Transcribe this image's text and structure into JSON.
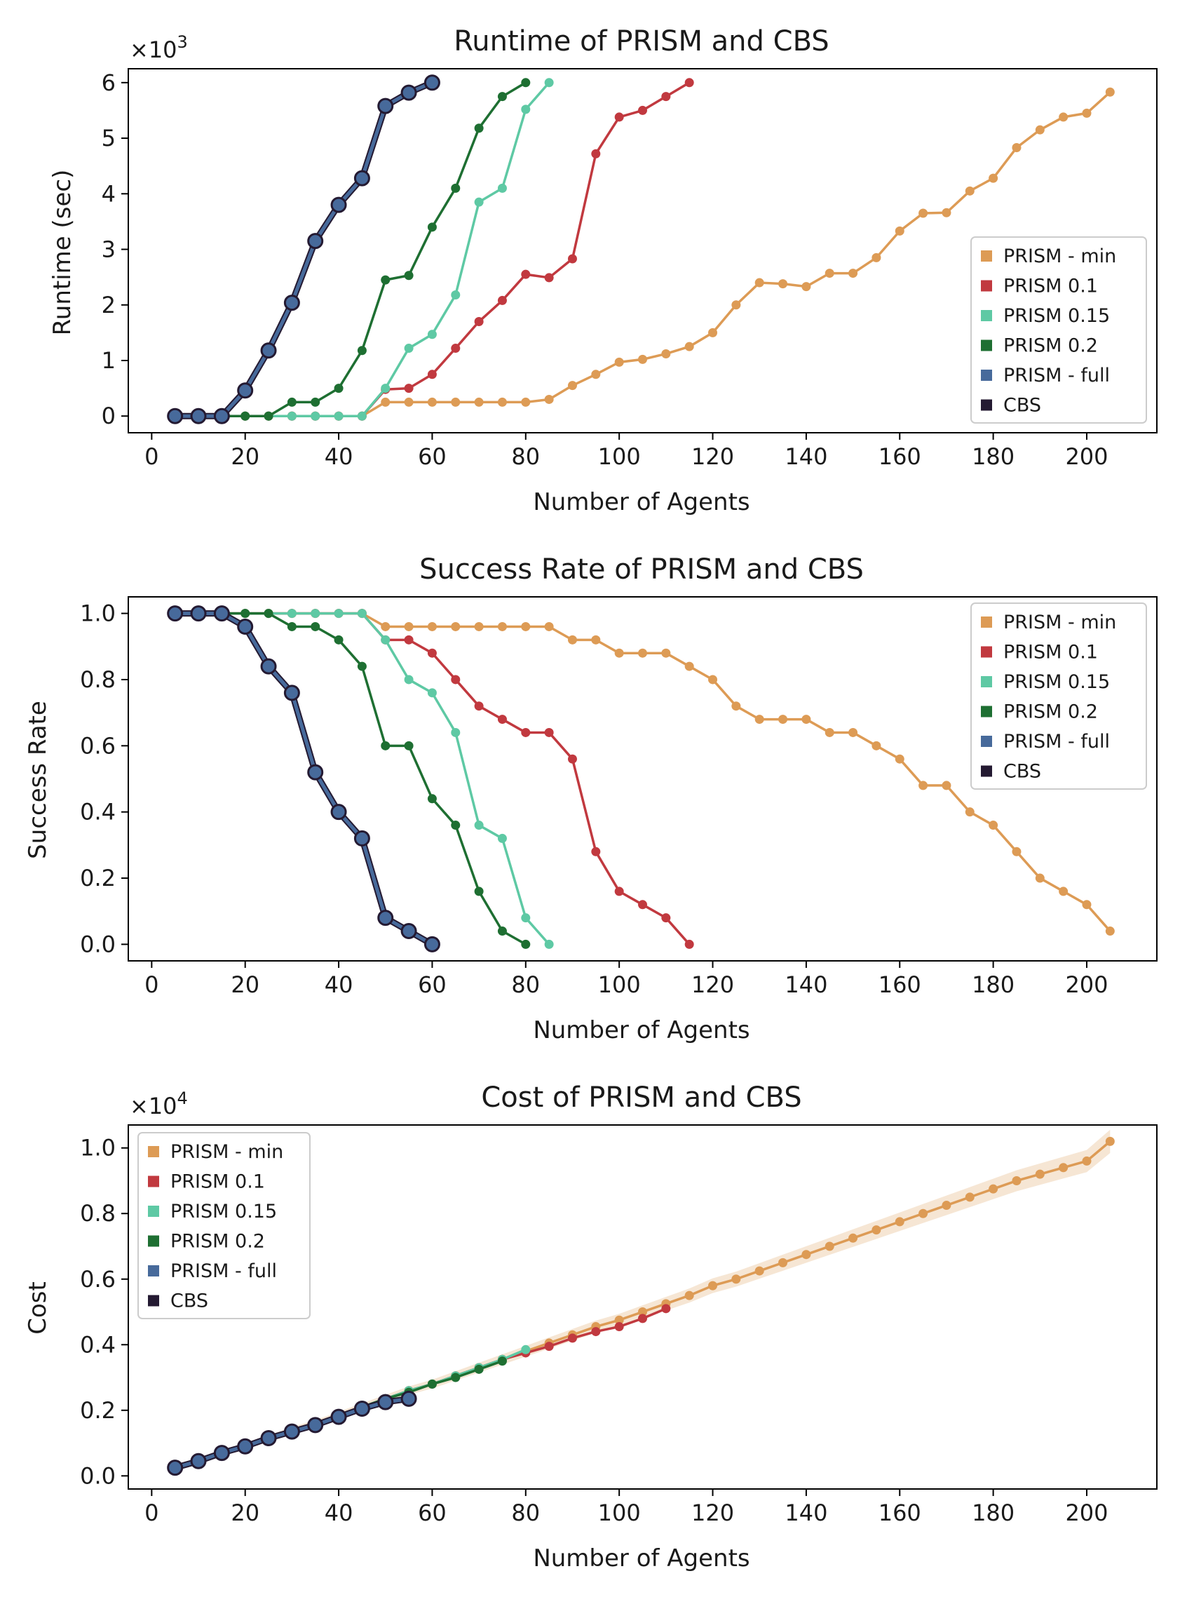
{
  "chart_data": [
    {
      "type": "line",
      "title": "Runtime of PRISM and CBS",
      "xlabel": "Number of Agents",
      "ylabel": "Runtime (sec)",
      "y_multiplier": "×10",
      "y_multiplier_exp": "3",
      "xlim": [
        -5,
        215
      ],
      "ylim": [
        -0.3,
        6.25
      ],
      "xticks": [
        0,
        20,
        40,
        60,
        80,
        100,
        120,
        140,
        160,
        180,
        200
      ],
      "yticks": [
        0,
        1,
        2,
        3,
        4,
        5,
        6
      ],
      "ytick_labels": [
        "0",
        "1",
        "2",
        "3",
        "4",
        "5",
        "6"
      ],
      "legend_position": "lower-right",
      "series": [
        {
          "name": "PRISM - min",
          "color": "#dd9b55",
          "x": [
            5,
            10,
            15,
            20,
            25,
            30,
            35,
            40,
            45,
            50,
            55,
            60,
            65,
            70,
            75,
            80,
            85,
            90,
            95,
            100,
            105,
            110,
            115,
            120,
            125,
            130,
            135,
            140,
            145,
            150,
            155,
            160,
            165,
            170,
            175,
            180,
            185,
            190,
            195,
            200,
            205
          ],
          "y": [
            0,
            0,
            0,
            0,
            0,
            0,
            0,
            0,
            0,
            0.25,
            0.25,
            0.25,
            0.25,
            0.25,
            0.25,
            0.25,
            0.3,
            0.55,
            0.75,
            0.97,
            1.02,
            1.12,
            1.25,
            1.5,
            2.0,
            2.4,
            2.38,
            2.33,
            2.57,
            2.57,
            2.85,
            3.33,
            3.65,
            3.66,
            4.05,
            4.28,
            4.83,
            5.15,
            5.38,
            5.45,
            5.83
          ]
        },
        {
          "name": "PRISM 0.1",
          "color": "#c1393f",
          "x": [
            5,
            10,
            15,
            20,
            25,
            30,
            35,
            40,
            45,
            50,
            55,
            60,
            65,
            70,
            75,
            80,
            85,
            90,
            95,
            100,
            105,
            110,
            115
          ],
          "y": [
            0,
            0,
            0,
            0,
            0,
            0,
            0,
            0,
            0,
            0.48,
            0.5,
            0.75,
            1.22,
            1.7,
            2.08,
            2.55,
            2.49,
            2.83,
            4.72,
            5.38,
            5.5,
            5.75,
            6.0
          ]
        },
        {
          "name": "PRISM 0.15",
          "color": "#5ec9a4",
          "x": [
            5,
            10,
            15,
            20,
            25,
            30,
            35,
            40,
            45,
            50,
            55,
            60,
            65,
            70,
            75,
            80,
            85
          ],
          "y": [
            0,
            0,
            0,
            0,
            0,
            0,
            0,
            0,
            0,
            0.5,
            1.22,
            1.47,
            2.18,
            3.85,
            4.1,
            5.52,
            6.0
          ]
        },
        {
          "name": "PRISM 0.2",
          "color": "#1e6f32",
          "x": [
            5,
            10,
            15,
            20,
            25,
            30,
            35,
            40,
            45,
            50,
            55,
            60,
            65,
            70,
            75,
            80
          ],
          "y": [
            0,
            0,
            0,
            0,
            0,
            0.25,
            0.25,
            0.5,
            1.18,
            2.45,
            2.53,
            3.4,
            4.1,
            5.18,
            5.75,
            6.0
          ]
        },
        {
          "name": "PRISM - full",
          "color": "#476a9b",
          "x": [
            5,
            10,
            15,
            20,
            25,
            30,
            35,
            40,
            45,
            50,
            55,
            60
          ],
          "y": [
            0,
            0,
            0,
            0.46,
            1.18,
            2.04,
            3.15,
            3.8,
            4.28,
            5.58,
            5.82,
            6.0
          ]
        },
        {
          "name": "CBS",
          "color": "#241a32",
          "x": [
            5,
            10,
            15,
            20,
            25,
            30,
            35,
            40,
            45,
            50,
            55,
            60
          ],
          "y": [
            0,
            0,
            0,
            0.46,
            1.18,
            2.04,
            3.15,
            3.8,
            4.28,
            5.58,
            5.82,
            6.0
          ]
        }
      ]
    },
    {
      "type": "line",
      "title": "Success Rate of PRISM and CBS",
      "xlabel": "Number of Agents",
      "ylabel": "Success Rate",
      "y_multiplier": "",
      "y_multiplier_exp": "",
      "xlim": [
        -5,
        215
      ],
      "ylim": [
        -0.05,
        1.05
      ],
      "xticks": [
        0,
        20,
        40,
        60,
        80,
        100,
        120,
        140,
        160,
        180,
        200
      ],
      "yticks": [
        0,
        0.2,
        0.4,
        0.6,
        0.8,
        1.0
      ],
      "ytick_labels": [
        "0.0",
        "0.2",
        "0.4",
        "0.6",
        "0.8",
        "1.0"
      ],
      "legend_position": "upper-right",
      "series": [
        {
          "name": "PRISM - min",
          "color": "#dd9b55",
          "x": [
            5,
            10,
            15,
            20,
            25,
            30,
            35,
            40,
            45,
            50,
            55,
            60,
            65,
            70,
            75,
            80,
            85,
            90,
            95,
            100,
            105,
            110,
            115,
            120,
            125,
            130,
            135,
            140,
            145,
            150,
            155,
            160,
            165,
            170,
            175,
            180,
            185,
            190,
            195,
            200,
            205
          ],
          "y": [
            1,
            1,
            1,
            1,
            1,
            1,
            1,
            1,
            1,
            0.96,
            0.96,
            0.96,
            0.96,
            0.96,
            0.96,
            0.96,
            0.96,
            0.92,
            0.92,
            0.88,
            0.88,
            0.88,
            0.84,
            0.8,
            0.72,
            0.68,
            0.68,
            0.68,
            0.64,
            0.64,
            0.6,
            0.56,
            0.48,
            0.48,
            0.4,
            0.36,
            0.28,
            0.2,
            0.16,
            0.12,
            0.04
          ]
        },
        {
          "name": "PRISM 0.1",
          "color": "#c1393f",
          "x": [
            5,
            10,
            15,
            20,
            25,
            30,
            35,
            40,
            45,
            50,
            55,
            60,
            65,
            70,
            75,
            80,
            85,
            90,
            95,
            100,
            105,
            110,
            115
          ],
          "y": [
            1,
            1,
            1,
            1,
            1,
            1,
            1,
            1,
            1,
            0.92,
            0.92,
            0.88,
            0.8,
            0.72,
            0.68,
            0.64,
            0.64,
            0.56,
            0.28,
            0.16,
            0.12,
            0.08,
            0.0
          ]
        },
        {
          "name": "PRISM 0.15",
          "color": "#5ec9a4",
          "x": [
            5,
            10,
            15,
            20,
            25,
            30,
            35,
            40,
            45,
            50,
            55,
            60,
            65,
            70,
            75,
            80,
            85
          ],
          "y": [
            1,
            1,
            1,
            1,
            1,
            1,
            1,
            1,
            1,
            0.92,
            0.8,
            0.76,
            0.64,
            0.36,
            0.32,
            0.08,
            0.0
          ]
        },
        {
          "name": "PRISM 0.2",
          "color": "#1e6f32",
          "x": [
            5,
            10,
            15,
            20,
            25,
            30,
            35,
            40,
            45,
            50,
            55,
            60,
            65,
            70,
            75,
            80
          ],
          "y": [
            1,
            1,
            1,
            1,
            1,
            0.96,
            0.96,
            0.92,
            0.84,
            0.6,
            0.6,
            0.44,
            0.36,
            0.16,
            0.04,
            0.0
          ]
        },
        {
          "name": "PRISM - full",
          "color": "#476a9b",
          "x": [
            5,
            10,
            15,
            20,
            25,
            30,
            35,
            40,
            45,
            50,
            55,
            60
          ],
          "y": [
            1,
            1,
            1,
            0.96,
            0.84,
            0.76,
            0.52,
            0.4,
            0.32,
            0.08,
            0.04,
            0.0
          ]
        },
        {
          "name": "CBS",
          "color": "#241a32",
          "x": [
            5,
            10,
            15,
            20,
            25,
            30,
            35,
            40,
            45,
            50,
            55,
            60
          ],
          "y": [
            1,
            1,
            1,
            0.96,
            0.84,
            0.76,
            0.52,
            0.4,
            0.32,
            0.08,
            0.04,
            0.0
          ]
        }
      ]
    },
    {
      "type": "line",
      "title": "Cost of PRISM and CBS",
      "xlabel": "Number of Agents",
      "ylabel": "Cost",
      "y_multiplier": "×10",
      "y_multiplier_exp": "4",
      "xlim": [
        -5,
        215
      ],
      "ylim": [
        -0.04,
        1.07
      ],
      "xticks": [
        0,
        20,
        40,
        60,
        80,
        100,
        120,
        140,
        160,
        180,
        200
      ],
      "yticks": [
        0,
        0.2,
        0.4,
        0.6,
        0.8,
        1.0
      ],
      "ytick_labels": [
        "0.0",
        "0.2",
        "0.4",
        "0.6",
        "0.8",
        "1.0"
      ],
      "legend_position": "upper-left",
      "series": [
        {
          "name": "PRISM - min",
          "color": "#dd9b55",
          "band": true,
          "x": [
            5,
            10,
            15,
            20,
            25,
            30,
            35,
            40,
            45,
            50,
            55,
            60,
            65,
            70,
            75,
            80,
            85,
            90,
            95,
            100,
            105,
            110,
            115,
            120,
            125,
            130,
            135,
            140,
            145,
            150,
            155,
            160,
            165,
            170,
            175,
            180,
            185,
            190,
            195,
            200,
            205
          ],
          "y": [
            0.025,
            0.05,
            0.07,
            0.09,
            0.115,
            0.14,
            0.16,
            0.185,
            0.21,
            0.235,
            0.26,
            0.28,
            0.305,
            0.33,
            0.355,
            0.38,
            0.405,
            0.43,
            0.455,
            0.475,
            0.5,
            0.525,
            0.55,
            0.58,
            0.6,
            0.625,
            0.65,
            0.675,
            0.7,
            0.725,
            0.75,
            0.775,
            0.8,
            0.825,
            0.85,
            0.875,
            0.9,
            0.92,
            0.94,
            0.96,
            1.02
          ]
        },
        {
          "name": "PRISM 0.1",
          "color": "#c1393f",
          "x": [
            5,
            10,
            15,
            20,
            25,
            30,
            35,
            40,
            45,
            50,
            55,
            60,
            65,
            70,
            75,
            80,
            85,
            90,
            95,
            100,
            105,
            110
          ],
          "y": [
            0.025,
            0.05,
            0.07,
            0.09,
            0.115,
            0.14,
            0.16,
            0.185,
            0.21,
            0.235,
            0.26,
            0.28,
            0.305,
            0.33,
            0.355,
            0.375,
            0.395,
            0.42,
            0.44,
            0.455,
            0.48,
            0.51
          ]
        },
        {
          "name": "PRISM 0.15",
          "color": "#5ec9a4",
          "x": [
            5,
            10,
            15,
            20,
            25,
            30,
            35,
            40,
            45,
            50,
            55,
            60,
            65,
            70,
            75,
            80
          ],
          "y": [
            0.025,
            0.05,
            0.07,
            0.09,
            0.115,
            0.14,
            0.16,
            0.185,
            0.21,
            0.235,
            0.26,
            0.28,
            0.305,
            0.33,
            0.355,
            0.385
          ]
        },
        {
          "name": "PRISM 0.2",
          "color": "#1e6f32",
          "x": [
            5,
            10,
            15,
            20,
            25,
            30,
            35,
            40,
            45,
            50,
            55,
            60,
            65,
            70,
            75
          ],
          "y": [
            0.025,
            0.05,
            0.07,
            0.09,
            0.115,
            0.14,
            0.16,
            0.185,
            0.21,
            0.235,
            0.255,
            0.28,
            0.3,
            0.325,
            0.35
          ]
        },
        {
          "name": "PRISM - full",
          "color": "#476a9b",
          "x": [
            5,
            10,
            15,
            20,
            25,
            30,
            35,
            40,
            45,
            50,
            55
          ],
          "y": [
            0.025,
            0.045,
            0.07,
            0.09,
            0.115,
            0.135,
            0.155,
            0.18,
            0.205,
            0.225,
            0.235
          ]
        },
        {
          "name": "CBS",
          "color": "#241a32",
          "x": [
            5,
            10,
            15,
            20,
            25,
            30,
            35,
            40,
            45,
            50,
            55
          ],
          "y": [
            0.025,
            0.045,
            0.07,
            0.09,
            0.115,
            0.135,
            0.155,
            0.18,
            0.205,
            0.225,
            0.235
          ]
        }
      ]
    }
  ]
}
